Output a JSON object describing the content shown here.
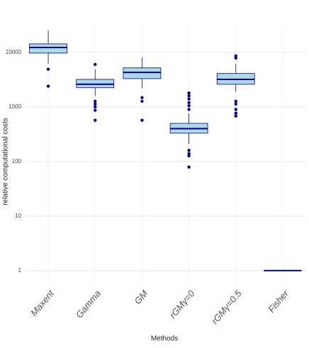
{
  "chart_data": {
    "type": "box",
    "x_label": "Methods",
    "y_label": "relative computational costs",
    "categories": [
      "Maxent",
      "Gamma",
      "GM",
      "rGMγ=0",
      "rGMγ=0.5",
      "Fisher"
    ],
    "whisker_low": [
      6200,
      1600,
      2200,
      210,
      1900,
      1
    ],
    "q1": [
      9700,
      2250,
      3300,
      330,
      2600,
      1
    ],
    "median": [
      12300,
      2600,
      4300,
      400,
      3200,
      1
    ],
    "q3": [
      14300,
      3200,
      5200,
      500,
      4100,
      1
    ],
    "whisker_high": [
      25000,
      4900,
      8100,
      760,
      6200,
      1
    ],
    "outliers": [
      [
        4900,
        2400
      ],
      [
        6000,
        1270,
        1130,
        1000,
        870,
        570
      ],
      [
        1480,
        1270,
        570
      ],
      [
        1800,
        1600,
        1400,
        1200,
        1050,
        900,
        160,
        140,
        127,
        79
      ],
      [
        8600,
        7900,
        1270,
        1130,
        900,
        770,
        680
      ],
      []
    ],
    "color": "#add8e6",
    "edge_color": "#00008b",
    "log_scale": true,
    "grid": true,
    "ylim": [
      0.58,
      32000
    ],
    "yticks": [
      1,
      10,
      100,
      1000,
      10000
    ]
  }
}
